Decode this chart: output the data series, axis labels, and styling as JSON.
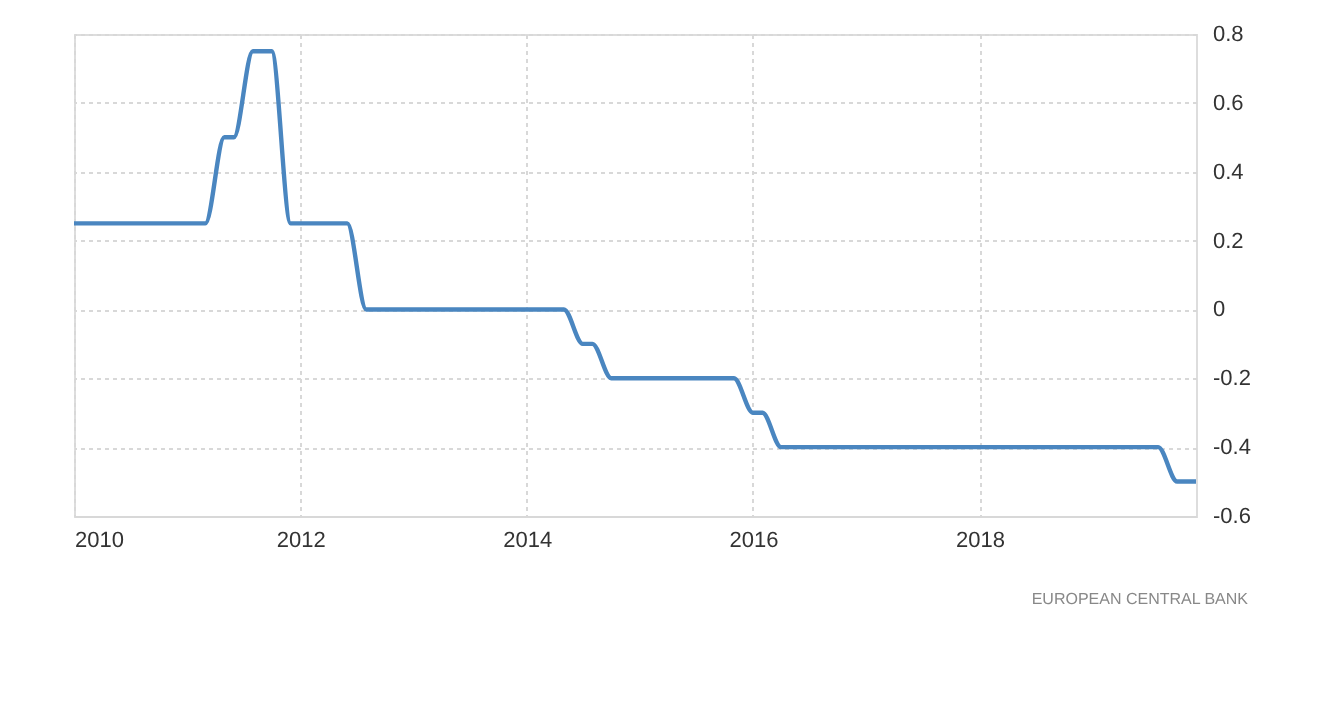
{
  "chart_data": {
    "type": "line",
    "x": [
      "2010-01",
      "2011-03",
      "2011-05",
      "2011-06",
      "2011-08",
      "2011-09",
      "2011-10",
      "2011-12",
      "2012-06",
      "2012-08",
      "2014-05",
      "2014-07",
      "2014-08",
      "2014-10",
      "2015-11",
      "2016-01",
      "2016-02",
      "2016-04",
      "2019-08",
      "2019-10",
      "2019-12"
    ],
    "series": [
      {
        "color": "#4a86c0",
        "values": [
          0.25,
          0.25,
          0.5,
          0.5,
          0.75,
          0.75,
          0.75,
          0.25,
          0.25,
          0,
          0,
          -0.1,
          -0.1,
          -0.2,
          -0.2,
          -0.3,
          -0.3,
          -0.4,
          -0.4,
          -0.5,
          -0.5
        ]
      }
    ],
    "xlim": [
      "2010",
      "2019-12"
    ],
    "xticks": [
      "2010",
      "2012",
      "2014",
      "2016",
      "2018"
    ],
    "ylim": [
      -0.6,
      0.8
    ],
    "yticks": [
      -0.6,
      -0.4,
      -0.2,
      0,
      0.2,
      0.4,
      0.6,
      0.8
    ],
    "grid": true,
    "marker": "none",
    "line_style": "solid",
    "annotations": [
      "EUROPEAN CENTRAL BANK"
    ]
  }
}
